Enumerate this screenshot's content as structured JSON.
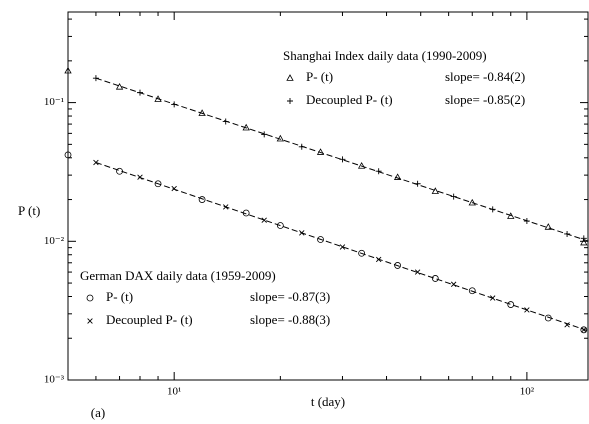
{
  "chart_data": {
    "type": "scatter",
    "x_label": "t (day)",
    "y_label": "P (t)",
    "panel_label": "(a)",
    "log_x": true,
    "log_y": true,
    "xlim": [
      5,
      150
    ],
    "ylim": [
      0.001,
      0.45
    ],
    "xticks": [
      {
        "value": 10,
        "label": "10¹"
      },
      {
        "value": 100,
        "label": "10²"
      }
    ],
    "yticks": [
      {
        "value": 0.001,
        "label": "10⁻³"
      },
      {
        "value": 0.01,
        "label": "10⁻²"
      },
      {
        "value": 0.1,
        "label": "10⁻¹"
      }
    ],
    "xminor_ticks": [
      6,
      7,
      8,
      9,
      20,
      30,
      40,
      50,
      60,
      70,
      80,
      90
    ],
    "yminor_ticks": [
      0.002,
      0.003,
      0.004,
      0.005,
      0.006,
      0.007,
      0.008,
      0.009,
      0.02,
      0.03,
      0.04,
      0.05,
      0.06,
      0.07,
      0.08,
      0.09,
      0.2,
      0.3,
      0.4
    ],
    "legends": [
      {
        "title": "Shanghai Index daily data (1990-2009)",
        "series": [
          0,
          1
        ]
      },
      {
        "title": "German DAX daily data (1959-2009)",
        "series": [
          2,
          3
        ]
      }
    ],
    "series": [
      {
        "name": "P- (t)",
        "slope": "slope= -0.84(2)",
        "marker": "triangle",
        "color": "#000000",
        "x": [
          5,
          7,
          9,
          12,
          16,
          20,
          26,
          34,
          43,
          55,
          70,
          90,
          115,
          145
        ],
        "values": [
          0.17,
          0.13,
          0.106,
          0.084,
          0.066,
          0.055,
          0.044,
          0.035,
          0.029,
          0.023,
          0.019,
          0.0152,
          0.0127,
          0.0098
        ]
      },
      {
        "name": "Decoupled P- (t)",
        "slope": "slope= -0.85(2)",
        "marker": "plus",
        "color": "#000000",
        "x": [
          6,
          8,
          10,
          14,
          18,
          23,
          30,
          38,
          49,
          62,
          80,
          100,
          130,
          145
        ],
        "values": [
          0.15,
          0.118,
          0.097,
          0.073,
          0.059,
          0.048,
          0.039,
          0.032,
          0.026,
          0.021,
          0.017,
          0.014,
          0.0113,
          0.0105
        ]
      },
      {
        "name": "P- (t)",
        "slope": "slope= -0.87(3)",
        "marker": "circle",
        "color": "#000000",
        "x": [
          5,
          7,
          9,
          12,
          16,
          20,
          26,
          34,
          43,
          55,
          70,
          90,
          115,
          145
        ],
        "values": [
          0.042,
          0.032,
          0.026,
          0.02,
          0.016,
          0.013,
          0.0103,
          0.0082,
          0.0067,
          0.0054,
          0.0044,
          0.0035,
          0.0028,
          0.0023
        ]
      },
      {
        "name": "Decoupled P- (t)",
        "slope": "slope= -0.88(3)",
        "marker": "cross",
        "color": "#000000",
        "x": [
          6,
          8,
          10,
          14,
          18,
          23,
          30,
          38,
          49,
          62,
          80,
          100,
          130,
          145
        ],
        "values": [
          0.037,
          0.029,
          0.024,
          0.0177,
          0.0142,
          0.0115,
          0.0091,
          0.0074,
          0.006,
          0.0049,
          0.0039,
          0.0032,
          0.0025,
          0.0023
        ]
      }
    ],
    "fit_lines": [
      {
        "x": [
          6,
          150
        ],
        "values": [
          0.15,
          0.01
        ]
      },
      {
        "x": [
          6,
          150
        ],
        "values": [
          0.037,
          0.00225
        ]
      }
    ]
  }
}
